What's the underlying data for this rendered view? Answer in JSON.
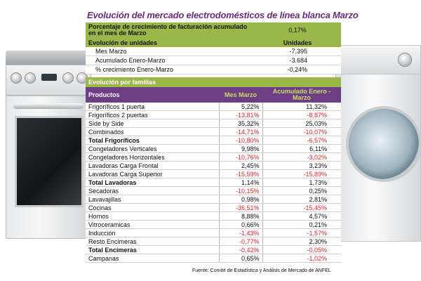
{
  "title": "Evolución del mercado electrodomésticos de línea blanca Marzo",
  "summary": {
    "growth_label": "Porcentaje de crecimiento de facturación acumulado en el mes de Marzo",
    "growth_value": "0,17%",
    "units_label": "Evolución de unidades",
    "units_col": "Unidades",
    "rows": [
      {
        "label": "Mes Marzo",
        "value": "-7.395"
      },
      {
        "label": "Acumulado Enero-Marzo",
        "value": "-3.684"
      },
      {
        "label": "% crecimiento Enero-Marzo",
        "value": "-0,24%"
      }
    ]
  },
  "families": {
    "heading": "Evolución por familias",
    "columns": [
      "Productos",
      "Mes Marzo",
      "Acumulado Enero - Marzo"
    ],
    "rows": [
      {
        "p": "Frigoríficos 1 puerta",
        "m": "5,22%",
        "a": "11,32%",
        "total": false
      },
      {
        "p": "Frigoríficos 2 puertas",
        "m": "-13,81%",
        "a": "-8,87%",
        "total": false
      },
      {
        "p": "Side by Side",
        "m": "35,32%",
        "a": "25,03%",
        "total": false
      },
      {
        "p": "Combinados",
        "m": "-14,71%",
        "a": "-10,07%",
        "total": false
      },
      {
        "p": "Total Frigoríficos",
        "m": "-10,80%",
        "a": "-6,57%",
        "total": true
      },
      {
        "p": "Congeladores Verticales",
        "m": "9,98%",
        "a": "6,11%",
        "total": false
      },
      {
        "p": "Congeladores Horizontales",
        "m": "-10,76%",
        "a": "-3,02%",
        "total": false
      },
      {
        "p": "Lavadoras Carga Frontal",
        "m": "2,45%",
        "a": "3,23%",
        "total": false
      },
      {
        "p": "Lavadoras Carga Superior",
        "m": "-15,59%",
        "a": "-15,89%",
        "total": false
      },
      {
        "p": "Total Lavadoras",
        "m": "1,14%",
        "a": "1,73%",
        "total": true
      },
      {
        "p": "Secadoras",
        "m": "-10,15%",
        "a": "0,25%",
        "total": false
      },
      {
        "p": "Lavavajillas",
        "m": "0,98%",
        "a": "2,81%",
        "total": false
      },
      {
        "p": "Cocinas",
        "m": "-36,51%",
        "a": "-15,45%",
        "total": false
      },
      {
        "p": "Hornos",
        "m": "8,88%",
        "a": "4,57%",
        "total": false
      },
      {
        "p": "Vitroceramicas",
        "m": "0,66%",
        "a": "0,21%",
        "total": false
      },
      {
        "p": "Inducción",
        "m": "-1,43%",
        "a": "-1,57%",
        "total": false
      },
      {
        "p": "Resto Encimeras",
        "m": "-0,77%",
        "a": "2,30%",
        "total": false
      },
      {
        "p": "Total Encimeras",
        "m": "-0,42%",
        "a": "-0,05%",
        "total": true
      },
      {
        "p": "Campanas",
        "m": "0,65%",
        "a": "-1,02%",
        "total": false
      }
    ]
  },
  "source": "Fuente: Comité de Estadística y Análisis de Mercado de ANFEL",
  "colors": {
    "green": "#9ab84a",
    "purple": "#6e3e85",
    "negative": "#e0262b",
    "title": "#6b2a7e"
  }
}
